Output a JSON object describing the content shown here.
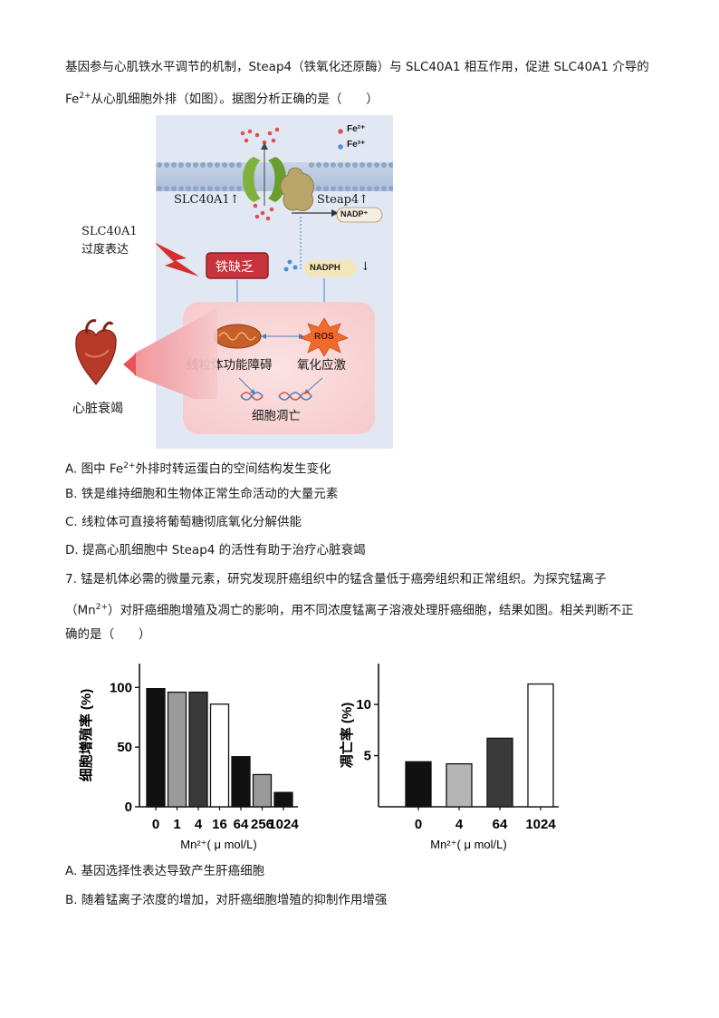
{
  "q6": {
    "stem_line1": "基因参与心肌铁水平调节的机制，Steap4（铁氧化还原酶）与 SLC40A1 相互作用，促进 SLC40A1 介导的",
    "stem_line2_prefix": "Fe",
    "stem_line2_sup": "2+",
    "stem_line2_rest": "从心肌细胞外排（如图）。据图分析正确的是（　　）",
    "options": [
      {
        "prefix": "A.  图中 Fe",
        "sup": "2+",
        "rest": "外排时转运蛋白的空间结构发生变化"
      },
      {
        "prefix": "B.  铁是维持细胞和生物体正常生命活动的大量元素",
        "sup": "",
        "rest": ""
      },
      {
        "prefix": "C.  线粒体可直接将葡萄糖彻底氧化分解供能",
        "sup": "",
        "rest": ""
      },
      {
        "prefix": "D.  提高心肌细胞中 Steap4 的活性有助于治疗心脏衰竭",
        "sup": "",
        "rest": ""
      }
    ]
  },
  "diagram": {
    "legend_fe2": "Fe²⁺",
    "legend_fe3": "Fe³⁺",
    "slc": "SLC40A1↑",
    "steap": "Steap4↑",
    "nadp": "NADP⁺",
    "nadph": "NADPH",
    "nadph_arrow": "↓",
    "overexpr_1": "SLC40A1",
    "overexpr_2": "过度表达",
    "deficiency": "铁缺乏",
    "ros": "ROS",
    "mito": "线粒体功能障碍",
    "oxidative": "氧化应激",
    "apoptosis": "细胞凋亡",
    "heart": "心脏衰竭",
    "colors": {
      "fe2": "#d9534f",
      "fe3": "#4a90d9",
      "deficiency": "#c8333d",
      "nadph": "#f5e6b8"
    }
  },
  "q7": {
    "stem_line1": "7. 锰是机体必需的微量元素，研究发现肝癌组织中的锰含量低于癌旁组织和正常组织。为探究锰离子",
    "stem_line2_prefix": "（Mn",
    "stem_line2_sup": "2+",
    "stem_line2_rest": "）对肝癌细胞增殖及凋亡的影响，用不同浓度锰离子溶液处理肝癌细胞，结果如图。相关判断不正",
    "stem_line3": "确的是（　　）",
    "options": [
      "A.  基因选择性表达导致产生肝癌细胞",
      "B.  随着锰离子浓度的增加，对肝癌细胞增殖的抑制作用增强"
    ]
  },
  "chart_data": [
    {
      "type": "bar",
      "categories": [
        "0",
        "1",
        "4",
        "16",
        "64",
        "256",
        "1024"
      ],
      "values": [
        99,
        96,
        96,
        86,
        42,
        27,
        12
      ],
      "colors": [
        "#111111",
        "#9a9a9a",
        "#3a3a3a",
        "#ffffff",
        "#111111",
        "#9a9a9a",
        "#111111"
      ],
      "yticks": [
        "0",
        "50",
        "100"
      ],
      "ylim": [
        0,
        120
      ],
      "ylabel": "细胞增殖率 (%)",
      "xlabel": "Mn²⁺( μ mol/L)"
    },
    {
      "type": "bar",
      "categories": [
        "0",
        "4",
        "64",
        "1024"
      ],
      "values": [
        4.4,
        4.2,
        6.7,
        12
      ],
      "colors": [
        "#111111",
        "#b5b5b5",
        "#3a3a3a",
        "#ffffff"
      ],
      "yticks": [
        "5",
        "10"
      ],
      "ylim": [
        0,
        14
      ],
      "ylabel": "凋亡率 (%)",
      "xlabel": "Mn²⁺( μ mol/L)"
    }
  ]
}
